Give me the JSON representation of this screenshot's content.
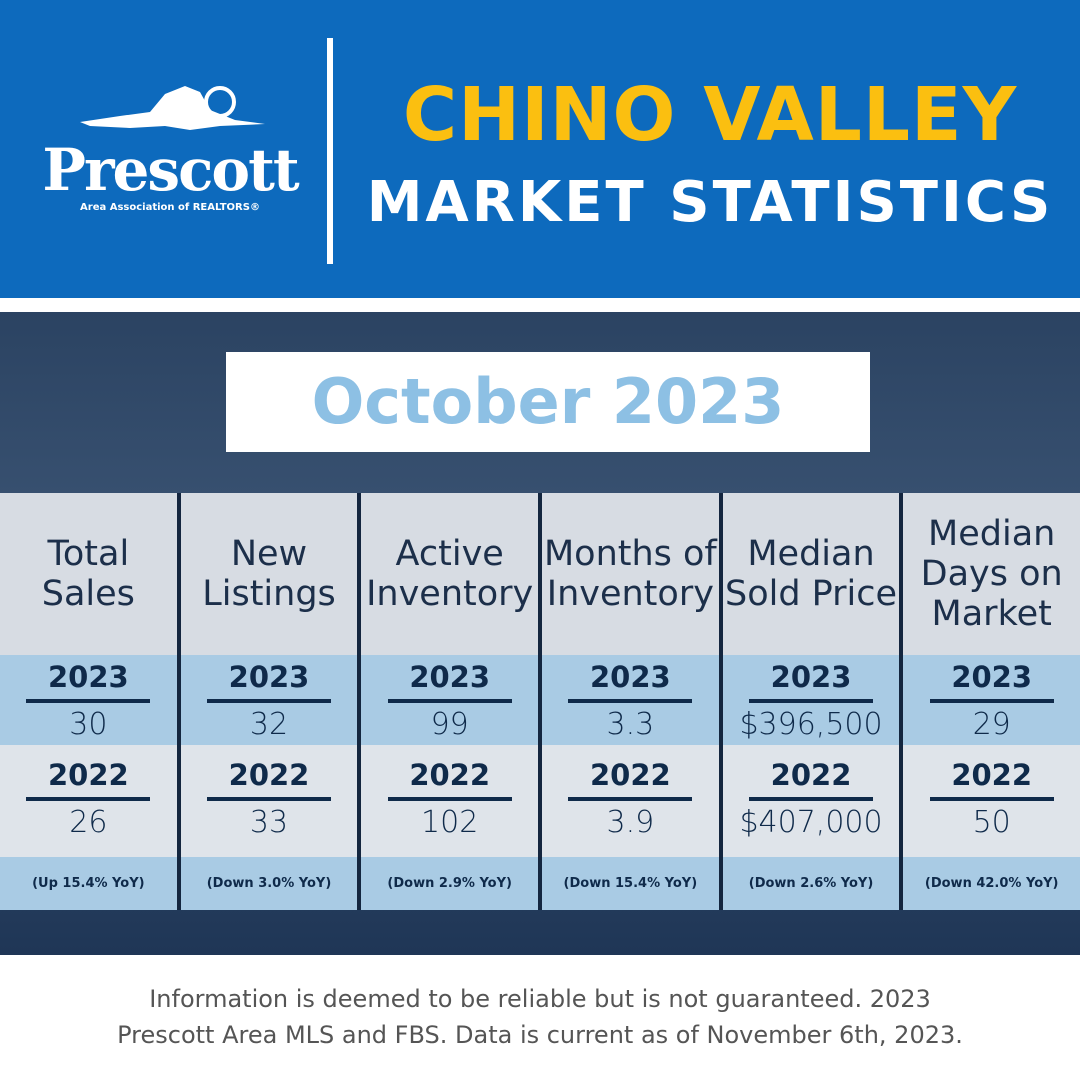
{
  "logo": {
    "word": "Prescott",
    "sub": "Area Association of REALTORS®"
  },
  "header": {
    "title": "CHINO VALLEY",
    "subtitle": "MARKET STATISTICS"
  },
  "period": "October 2023",
  "colors": {
    "header_blue": "#0d6abd",
    "title_yellow": "#fbbf10",
    "month_text": "#8dc0e4",
    "band_blue": "#a9cbe4",
    "navy": "#0f2a4a"
  },
  "stats": [
    {
      "label": "Total Sales",
      "y2023_label": "2023",
      "y2023": "30",
      "y2022_label": "2022",
      "y2022": "26",
      "yoy": "(Up 15.4% YoY)"
    },
    {
      "label": "New Listings",
      "y2023_label": "2023",
      "y2023": "32",
      "y2022_label": "2022",
      "y2022": "33",
      "yoy": "(Down 3.0% YoY)"
    },
    {
      "label": "Active Inventory",
      "y2023_label": "2023",
      "y2023": "99",
      "y2022_label": "2022",
      "y2022": "102",
      "yoy": "(Down 2.9% YoY)"
    },
    {
      "label": "Months of Inventory",
      "y2023_label": "2023",
      "y2023": "3.3",
      "y2022_label": "2022",
      "y2022": "3.9",
      "yoy": "(Down 15.4% YoY)"
    },
    {
      "label": "Median Sold Price",
      "y2023_label": "2023",
      "y2023": "$396,500",
      "y2022_label": "2022",
      "y2022": "$407,000",
      "yoy": "(Down 2.6% YoY)"
    },
    {
      "label": "Median Days on Market",
      "y2023_label": "2023",
      "y2023": "29",
      "y2022_label": "2022",
      "y2022": "50",
      "yoy": "(Down 42.0% YoY)"
    }
  ],
  "footer": {
    "line1": "Information is deemed to be reliable but is not guaranteed. 2023",
    "line2": "Prescott Area MLS and FBS. Data is current as of November 6th, 2023."
  }
}
